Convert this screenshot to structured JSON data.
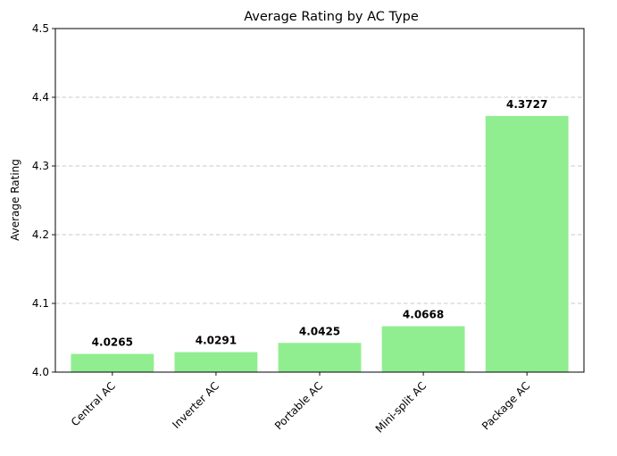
{
  "chart_data": {
    "type": "bar",
    "title": "Average Rating by AC Type",
    "xlabel": "",
    "ylabel": "Average Rating",
    "categories": [
      "Central AC",
      "Inverter AC",
      "Portable AC",
      "Mini-split AC",
      "Package AC"
    ],
    "values": [
      4.0265,
      4.0291,
      4.0425,
      4.0668,
      4.3727
    ],
    "data_labels": [
      "4.0265",
      "4.0291",
      "4.0425",
      "4.0668",
      "4.3727"
    ],
    "ylim": [
      4.0,
      4.5
    ],
    "yticks": [
      4.0,
      4.1,
      4.2,
      4.3,
      4.4,
      4.5
    ],
    "ytick_labels": [
      "4.0",
      "4.1",
      "4.2",
      "4.3",
      "4.4",
      "4.5"
    ],
    "grid": "y-dashed",
    "colors": {
      "bar": "#90ee90",
      "grid": "#c8c8c8",
      "axis": "#000000"
    }
  }
}
